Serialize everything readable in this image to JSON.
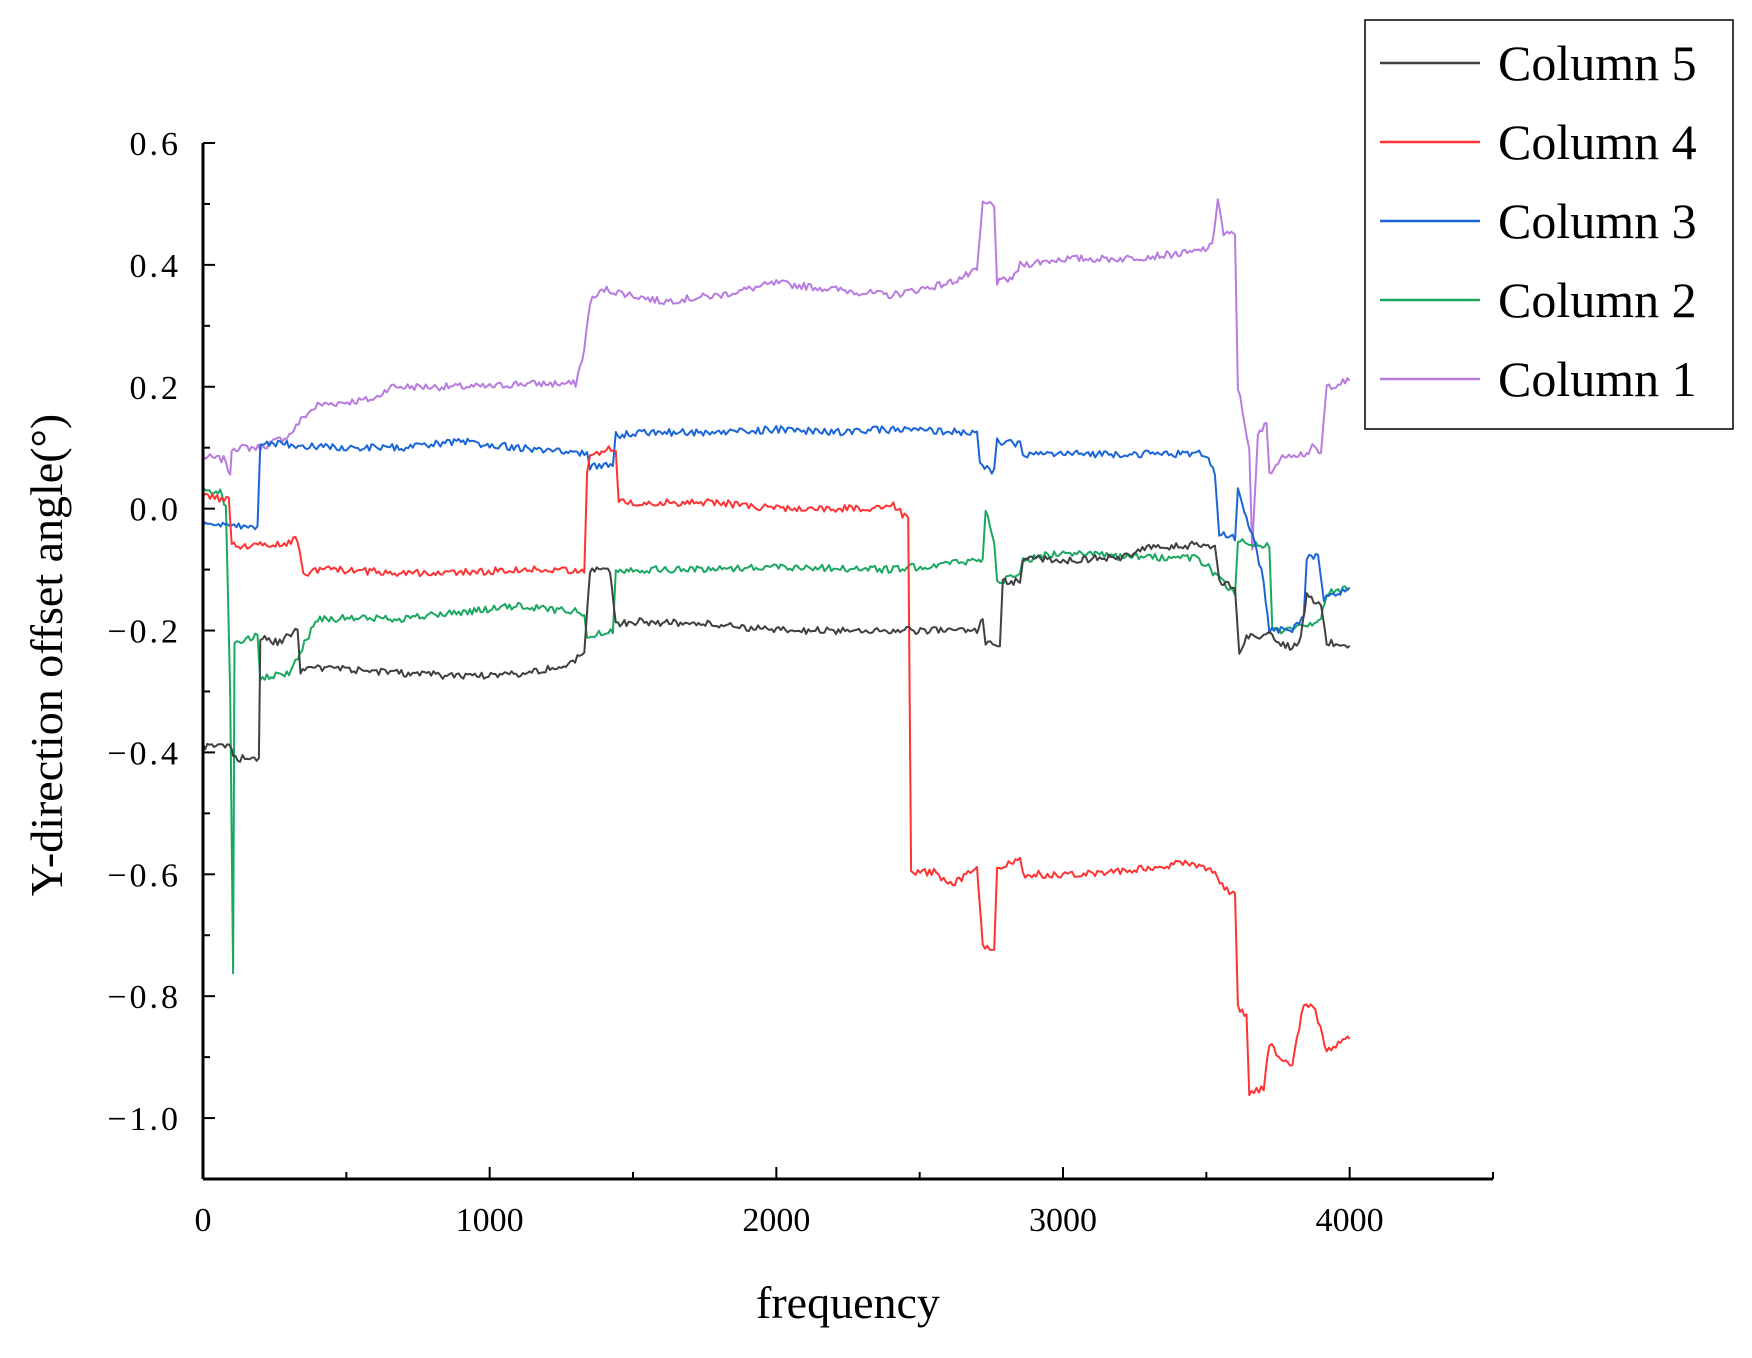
{
  "chart_data": {
    "type": "line",
    "title": "",
    "xlabel": "frequency",
    "ylabel": "Y-direction offset angle(°)",
    "xlim": [
      0,
      4500
    ],
    "ylim": [
      -1.1,
      0.6
    ],
    "xticks": [
      0,
      1000,
      2000,
      3000,
      4000
    ],
    "xtick_labels": [
      "0",
      "1000",
      "2000",
      "3000",
      "4000"
    ],
    "yticks": [
      0.6,
      0.4,
      0.2,
      0.0,
      -0.2,
      -0.4,
      -0.6,
      -0.8,
      -1.0
    ],
    "ytick_labels": [
      "0.6",
      "0.4",
      "0.2",
      "0.0",
      "−0.2",
      "−0.4",
      "−0.6",
      "−0.8",
      "−1.0"
    ],
    "grid": false,
    "legend_position": "top-right",
    "series": [
      {
        "name": "Column 5",
        "color": "#404040",
        "points": [
          [
            0,
            -0.39
          ],
          [
            100,
            -0.39
          ],
          [
            105,
            -0.41
          ],
          [
            195,
            -0.41
          ],
          [
            200,
            -0.21
          ],
          [
            260,
            -0.22
          ],
          [
            330,
            -0.2
          ],
          [
            340,
            -0.27
          ],
          [
            400,
            -0.26
          ],
          [
            700,
            -0.27
          ],
          [
            900,
            -0.275
          ],
          [
            1100,
            -0.27
          ],
          [
            1250,
            -0.26
          ],
          [
            1330,
            -0.24
          ],
          [
            1350,
            -0.1
          ],
          [
            1420,
            -0.1
          ],
          [
            1440,
            -0.19
          ],
          [
            1500,
            -0.185
          ],
          [
            1800,
            -0.19
          ],
          [
            2000,
            -0.2
          ],
          [
            2400,
            -0.2
          ],
          [
            2700,
            -0.2
          ],
          [
            2720,
            -0.18
          ],
          [
            2730,
            -0.22
          ],
          [
            2780,
            -0.22
          ],
          [
            2790,
            -0.12
          ],
          [
            2850,
            -0.12
          ],
          [
            2860,
            -0.08
          ],
          [
            3000,
            -0.085
          ],
          [
            3200,
            -0.08
          ],
          [
            3300,
            -0.065
          ],
          [
            3450,
            -0.06
          ],
          [
            3530,
            -0.06
          ],
          [
            3545,
            -0.12
          ],
          [
            3600,
            -0.13
          ],
          [
            3615,
            -0.24
          ],
          [
            3640,
            -0.21
          ],
          [
            3700,
            -0.21
          ],
          [
            3715,
            -0.2
          ],
          [
            3760,
            -0.22
          ],
          [
            3800,
            -0.23
          ],
          [
            3830,
            -0.21
          ],
          [
            3850,
            -0.14
          ],
          [
            3900,
            -0.16
          ],
          [
            3920,
            -0.22
          ],
          [
            4000,
            -0.225
          ]
        ]
      },
      {
        "name": "Column 4",
        "color": "#ff3333",
        "points": [
          [
            0,
            0.02
          ],
          [
            90,
            0.015
          ],
          [
            100,
            -0.06
          ],
          [
            200,
            -0.06
          ],
          [
            260,
            -0.06
          ],
          [
            330,
            -0.05
          ],
          [
            350,
            -0.11
          ],
          [
            400,
            -0.1
          ],
          [
            700,
            -0.105
          ],
          [
            900,
            -0.105
          ],
          [
            1100,
            -0.1
          ],
          [
            1330,
            -0.1
          ],
          [
            1340,
            0.06
          ],
          [
            1350,
            0.09
          ],
          [
            1440,
            0.1
          ],
          [
            1450,
            0.01
          ],
          [
            1500,
            0.01
          ],
          [
            1800,
            0.01
          ],
          [
            2000,
            0.0
          ],
          [
            2350,
            0.0
          ],
          [
            2400,
            0.01
          ],
          [
            2440,
            -0.01
          ],
          [
            2460,
            -0.01
          ],
          [
            2470,
            -0.6
          ],
          [
            2550,
            -0.595
          ],
          [
            2600,
            -0.62
          ],
          [
            2700,
            -0.59
          ],
          [
            2720,
            -0.72
          ],
          [
            2760,
            -0.72
          ],
          [
            2770,
            -0.59
          ],
          [
            2850,
            -0.575
          ],
          [
            2860,
            -0.6
          ],
          [
            3000,
            -0.6
          ],
          [
            3200,
            -0.595
          ],
          [
            3450,
            -0.58
          ],
          [
            3530,
            -0.6
          ],
          [
            3580,
            -0.63
          ],
          [
            3600,
            -0.63
          ],
          [
            3610,
            -0.82
          ],
          [
            3640,
            -0.83
          ],
          [
            3650,
            -0.96
          ],
          [
            3700,
            -0.95
          ],
          [
            3720,
            -0.88
          ],
          [
            3760,
            -0.9
          ],
          [
            3800,
            -0.91
          ],
          [
            3840,
            -0.81
          ],
          [
            3880,
            -0.82
          ],
          [
            3890,
            -0.84
          ],
          [
            3920,
            -0.89
          ],
          [
            4000,
            -0.87
          ]
        ]
      },
      {
        "name": "Column 3",
        "color": "#1a66d9",
        "points": [
          [
            0,
            -0.025
          ],
          [
            100,
            -0.03
          ],
          [
            190,
            -0.03
          ],
          [
            200,
            0.11
          ],
          [
            300,
            0.105
          ],
          [
            500,
            0.1
          ],
          [
            700,
            0.1
          ],
          [
            900,
            0.11
          ],
          [
            1000,
            0.105
          ],
          [
            1100,
            0.1
          ],
          [
            1330,
            0.09
          ],
          [
            1340,
            0.09
          ],
          [
            1350,
            0.07
          ],
          [
            1430,
            0.07
          ],
          [
            1440,
            0.12
          ],
          [
            1500,
            0.125
          ],
          [
            1800,
            0.125
          ],
          [
            2000,
            0.13
          ],
          [
            2200,
            0.125
          ],
          [
            2400,
            0.13
          ],
          [
            2700,
            0.125
          ],
          [
            2710,
            0.07
          ],
          [
            2760,
            0.06
          ],
          [
            2770,
            0.11
          ],
          [
            2850,
            0.105
          ],
          [
            2860,
            0.09
          ],
          [
            3000,
            0.09
          ],
          [
            3200,
            0.09
          ],
          [
            3450,
            0.09
          ],
          [
            3500,
            0.09
          ],
          [
            3530,
            0.06
          ],
          [
            3545,
            -0.04
          ],
          [
            3600,
            -0.05
          ],
          [
            3610,
            0.03
          ],
          [
            3640,
            -0.02
          ],
          [
            3660,
            -0.04
          ],
          [
            3700,
            -0.12
          ],
          [
            3720,
            -0.2
          ],
          [
            3800,
            -0.2
          ],
          [
            3840,
            -0.18
          ],
          [
            3850,
            -0.08
          ],
          [
            3890,
            -0.08
          ],
          [
            3910,
            -0.15
          ],
          [
            4000,
            -0.13
          ]
        ]
      },
      {
        "name": "Column 2",
        "color": "#1aa860",
        "points": [
          [
            0,
            0.03
          ],
          [
            60,
            0.03
          ],
          [
            80,
            0.0
          ],
          [
            95,
            -0.3
          ],
          [
            105,
            -0.76
          ],
          [
            110,
            -0.22
          ],
          [
            190,
            -0.21
          ],
          [
            200,
            -0.28
          ],
          [
            300,
            -0.27
          ],
          [
            400,
            -0.18
          ],
          [
            700,
            -0.18
          ],
          [
            900,
            -0.17
          ],
          [
            1000,
            -0.165
          ],
          [
            1100,
            -0.16
          ],
          [
            1330,
            -0.17
          ],
          [
            1340,
            -0.21
          ],
          [
            1430,
            -0.2
          ],
          [
            1440,
            -0.1
          ],
          [
            1500,
            -0.1
          ],
          [
            1700,
            -0.1
          ],
          [
            2000,
            -0.095
          ],
          [
            2400,
            -0.1
          ],
          [
            2700,
            -0.085
          ],
          [
            2720,
            -0.085
          ],
          [
            2730,
            0.0
          ],
          [
            2760,
            -0.05
          ],
          [
            2770,
            -0.12
          ],
          [
            2850,
            -0.11
          ],
          [
            2860,
            -0.085
          ],
          [
            3000,
            -0.07
          ],
          [
            3200,
            -0.08
          ],
          [
            3450,
            -0.08
          ],
          [
            3500,
            -0.09
          ],
          [
            3530,
            -0.11
          ],
          [
            3600,
            -0.14
          ],
          [
            3610,
            -0.05
          ],
          [
            3680,
            -0.06
          ],
          [
            3720,
            -0.06
          ],
          [
            3730,
            -0.2
          ],
          [
            3800,
            -0.2
          ],
          [
            3900,
            -0.18
          ],
          [
            3920,
            -0.14
          ],
          [
            4000,
            -0.13
          ]
        ]
      },
      {
        "name": "Column 1",
        "color": "#b87be0",
        "points": [
          [
            0,
            0.085
          ],
          [
            80,
            0.08
          ],
          [
            95,
            0.05
          ],
          [
            100,
            0.1
          ],
          [
            200,
            0.1
          ],
          [
            300,
            0.12
          ],
          [
            350,
            0.15
          ],
          [
            400,
            0.17
          ],
          [
            600,
            0.18
          ],
          [
            650,
            0.2
          ],
          [
            1000,
            0.2
          ],
          [
            1100,
            0.205
          ],
          [
            1300,
            0.205
          ],
          [
            1330,
            0.26
          ],
          [
            1350,
            0.34
          ],
          [
            1400,
            0.36
          ],
          [
            1600,
            0.34
          ],
          [
            1800,
            0.35
          ],
          [
            2000,
            0.37
          ],
          [
            2200,
            0.36
          ],
          [
            2400,
            0.35
          ],
          [
            2600,
            0.37
          ],
          [
            2700,
            0.39
          ],
          [
            2720,
            0.5
          ],
          [
            2760,
            0.5
          ],
          [
            2770,
            0.37
          ],
          [
            2830,
            0.38
          ],
          [
            2850,
            0.4
          ],
          [
            3000,
            0.41
          ],
          [
            3200,
            0.41
          ],
          [
            3450,
            0.42
          ],
          [
            3520,
            0.43
          ],
          [
            3540,
            0.51
          ],
          [
            3560,
            0.45
          ],
          [
            3580,
            0.45
          ],
          [
            3600,
            0.45
          ],
          [
            3610,
            0.2
          ],
          [
            3650,
            0.1
          ],
          [
            3660,
            -0.07
          ],
          [
            3680,
            0.12
          ],
          [
            3710,
            0.14
          ],
          [
            3720,
            0.06
          ],
          [
            3780,
            0.09
          ],
          [
            3830,
            0.09
          ],
          [
            3850,
            0.09
          ],
          [
            3870,
            0.1
          ],
          [
            3900,
            0.09
          ],
          [
            3920,
            0.2
          ],
          [
            4000,
            0.21
          ]
        ]
      }
    ]
  }
}
